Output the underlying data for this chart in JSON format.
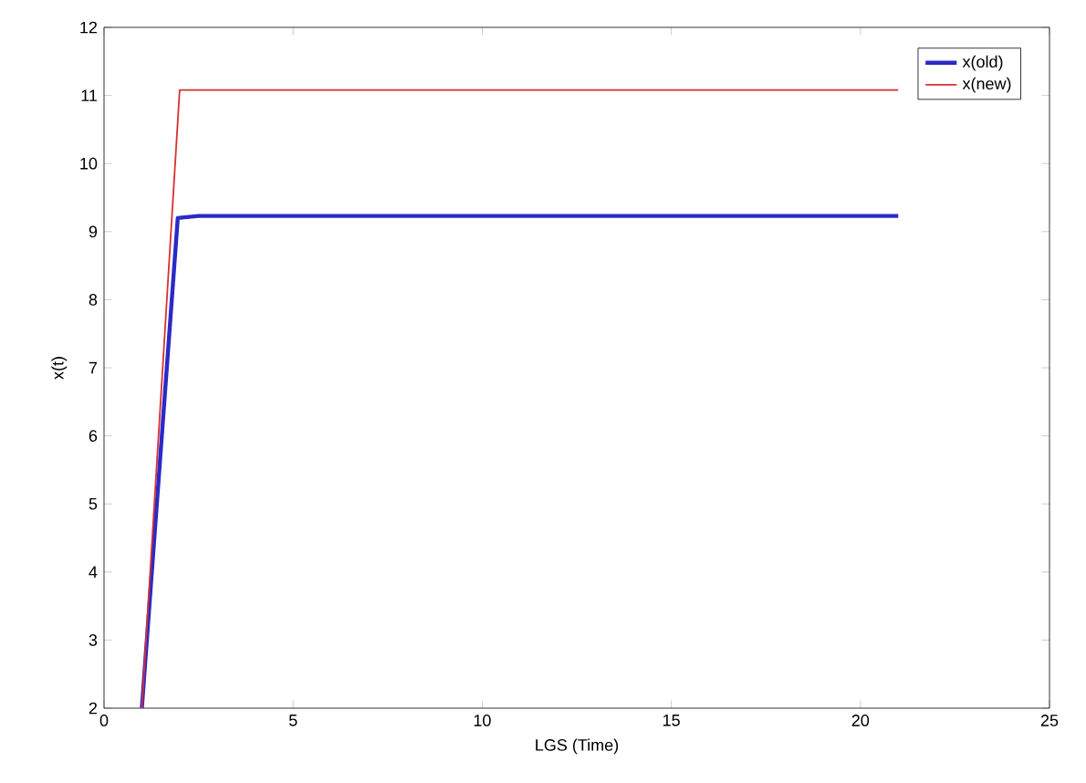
{
  "chart_data": {
    "type": "line",
    "xlabel": "LGS (Time)",
    "ylabel": "x(t)",
    "xlim": [
      0,
      25
    ],
    "ylim": [
      2,
      12
    ],
    "xticks": [
      0,
      5,
      10,
      15,
      20,
      25
    ],
    "yticks": [
      2,
      3,
      4,
      5,
      6,
      7,
      8,
      9,
      10,
      11,
      12
    ],
    "legend": "top right",
    "grid": false,
    "series": [
      {
        "name": "x(old)",
        "color": "#2a2ac8",
        "x": [
          1,
          1.95,
          2.5,
          21
        ],
        "values": [
          2,
          9.2,
          9.23,
          9.23
        ]
      },
      {
        "name": "x(new)",
        "color": "#d83030",
        "x": [
          1,
          2,
          21
        ],
        "values": [
          2,
          11.08,
          11.08
        ]
      }
    ]
  }
}
